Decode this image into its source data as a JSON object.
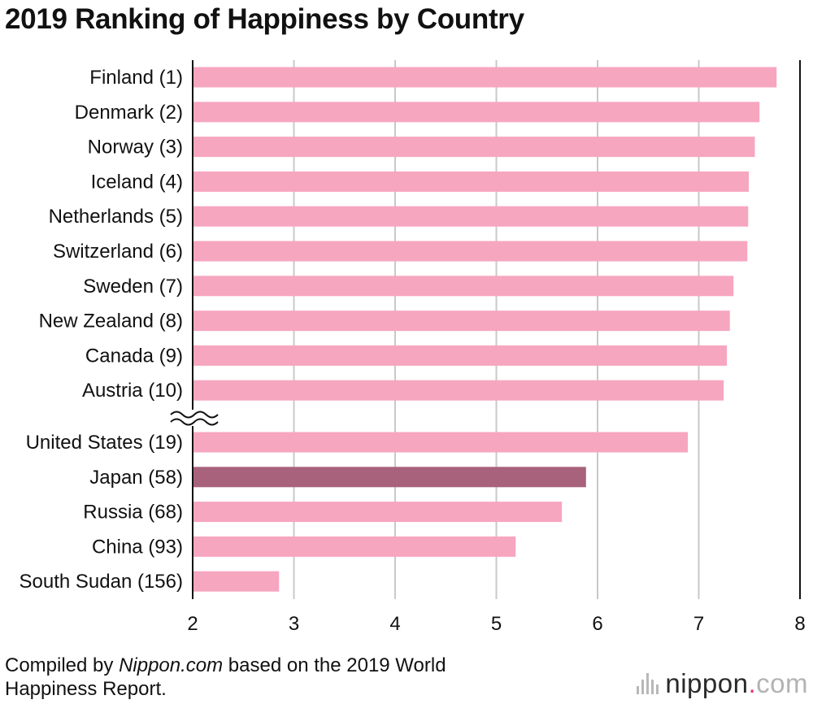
{
  "chart_data": {
    "type": "bar",
    "orientation": "horizontal",
    "title": "2019 Ranking of Happiness by Country",
    "xlim": [
      2,
      8
    ],
    "xticks": [
      2,
      3,
      4,
      5,
      6,
      7,
      8
    ],
    "grid": true,
    "axis_break_after": "Austria (10)",
    "highlight": "Japan (58)",
    "colors": {
      "bar": "#f7a6c0",
      "highlight": "#a8627b",
      "grid": "#c8c8c8",
      "axis": "#111111"
    },
    "groups": [
      {
        "categories": [
          "Finland (1)",
          "Denmark (2)",
          "Norway (3)",
          "Iceland (4)",
          "Netherlands (5)",
          "Switzerland (6)",
          "Sweden (7)",
          "New Zealand (8)",
          "Canada (9)",
          "Austria (10)"
        ],
        "values": [
          7.769,
          7.6,
          7.554,
          7.494,
          7.488,
          7.48,
          7.343,
          7.307,
          7.278,
          7.246
        ]
      },
      {
        "categories": [
          "United States (19)",
          "Japan (58)",
          "Russia (68)",
          "China (93)",
          "South Sudan (156)"
        ],
        "values": [
          6.892,
          5.886,
          5.648,
          5.191,
          2.853
        ]
      }
    ]
  },
  "footer": {
    "prefix": "Compiled by ",
    "source": "Nippon.com",
    "suffix": " based on the 2019 World Happiness Report."
  },
  "brand": {
    "name": "nippon",
    "dot": ".",
    "tld": "com"
  }
}
